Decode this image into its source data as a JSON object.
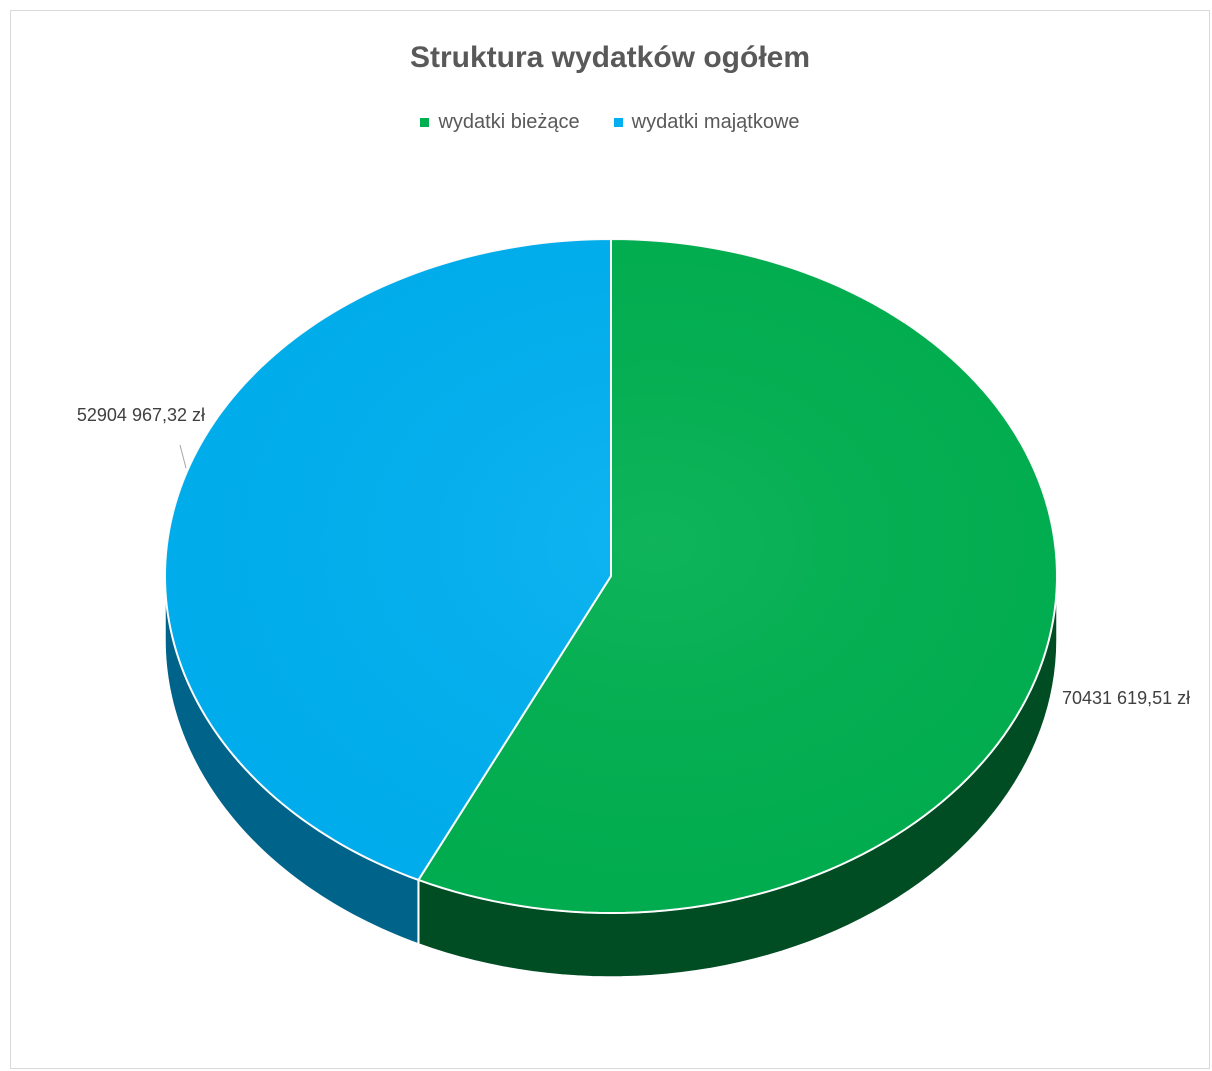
{
  "chart_data": {
    "type": "pie",
    "title": "Struktura wydatków ogółem",
    "categories": [
      "wydatki bieżące",
      "wydatki majątkowe"
    ],
    "values": [
      70431619.51,
      52904967.32
    ],
    "data_labels": [
      "70431 619,51 zł",
      "52904 967,32 zł"
    ],
    "colors": [
      "#00b050",
      "#00b0f0"
    ],
    "side_colors": [
      "#004d23",
      "#00648a"
    ],
    "legend_position": "top",
    "style": "3d"
  }
}
